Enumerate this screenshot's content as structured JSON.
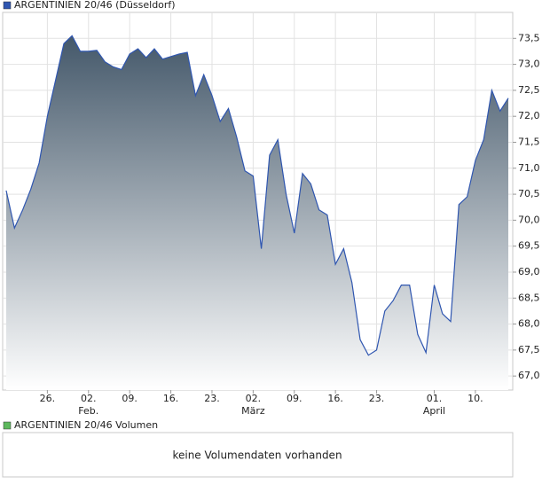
{
  "chart_data": {
    "type": "area",
    "series": [
      {
        "name": "ARGENTINIEN 20/46 (Düsseldorf)",
        "color": "#2f56b0",
        "values": [
          70.57,
          69.85,
          70.2,
          70.6,
          71.1,
          72.0,
          72.7,
          73.4,
          73.55,
          73.25,
          73.25,
          73.27,
          73.05,
          72.95,
          72.9,
          73.2,
          73.3,
          73.13,
          73.3,
          73.1,
          73.15,
          73.2,
          73.23,
          72.4,
          72.8,
          72.4,
          71.9,
          72.15,
          71.6,
          70.95,
          70.85,
          69.45,
          71.25,
          71.55,
          70.5,
          69.75,
          70.9,
          70.7,
          70.2,
          70.1,
          69.15,
          69.45,
          68.8,
          67.7,
          67.4,
          67.5,
          68.25,
          68.45,
          68.75,
          68.75,
          67.8,
          67.45,
          68.75,
          68.2,
          68.05,
          70.3,
          70.45,
          71.15,
          71.55,
          72.5,
          72.1,
          72.35
        ]
      }
    ],
    "categories": [
      null,
      null,
      null,
      null,
      null,
      "26.",
      null,
      null,
      null,
      null,
      "02.",
      null,
      null,
      null,
      null,
      "09.",
      null,
      null,
      null,
      null,
      "16.",
      null,
      null,
      null,
      null,
      "23.",
      null,
      null,
      null,
      null,
      "02.",
      null,
      null,
      null,
      null,
      "09.",
      null,
      null,
      null,
      null,
      "16.",
      null,
      null,
      null,
      null,
      "23.",
      null,
      null,
      null,
      null,
      null,
      null,
      "01.",
      null,
      null,
      null,
      null,
      "10.",
      null,
      null,
      null,
      null
    ],
    "x_months": [
      null,
      null,
      null,
      null,
      null,
      null,
      null,
      null,
      null,
      null,
      "Feb.",
      null,
      null,
      null,
      null,
      null,
      null,
      null,
      null,
      null,
      null,
      null,
      null,
      null,
      null,
      null,
      null,
      null,
      null,
      null,
      "März",
      null,
      null,
      null,
      null,
      null,
      null,
      null,
      null,
      null,
      null,
      null,
      null,
      null,
      null,
      null,
      null,
      null,
      null,
      null,
      null,
      null,
      "April",
      null,
      null,
      null,
      null,
      null,
      null,
      null,
      null,
      null
    ],
    "ylim": [
      66.73,
      74.0
    ],
    "yticks": [
      {
        "value": 67.0,
        "label": "67,0"
      },
      {
        "value": 67.5,
        "label": "67,5"
      },
      {
        "value": 68.0,
        "label": "68,0"
      },
      {
        "value": 68.5,
        "label": "68,5"
      },
      {
        "value": 69.0,
        "label": "69,0"
      },
      {
        "value": 69.5,
        "label": "69,5"
      },
      {
        "value": 70.0,
        "label": "70,0"
      },
      {
        "value": 70.5,
        "label": "70,5"
      },
      {
        "value": 71.0,
        "label": "71,0"
      },
      {
        "value": 71.5,
        "label": "71,5"
      },
      {
        "value": 72.0,
        "label": "72,0"
      },
      {
        "value": 72.5,
        "label": "72,5"
      },
      {
        "value": 73.0,
        "label": "73,0"
      },
      {
        "value": 73.5,
        "label": "73,5"
      }
    ],
    "grid": true,
    "volume": {
      "name": "ARGENTINIEN 20/46 Volumen",
      "color": "#5cb85c",
      "message": "keine Volumendaten vorhanden"
    }
  }
}
